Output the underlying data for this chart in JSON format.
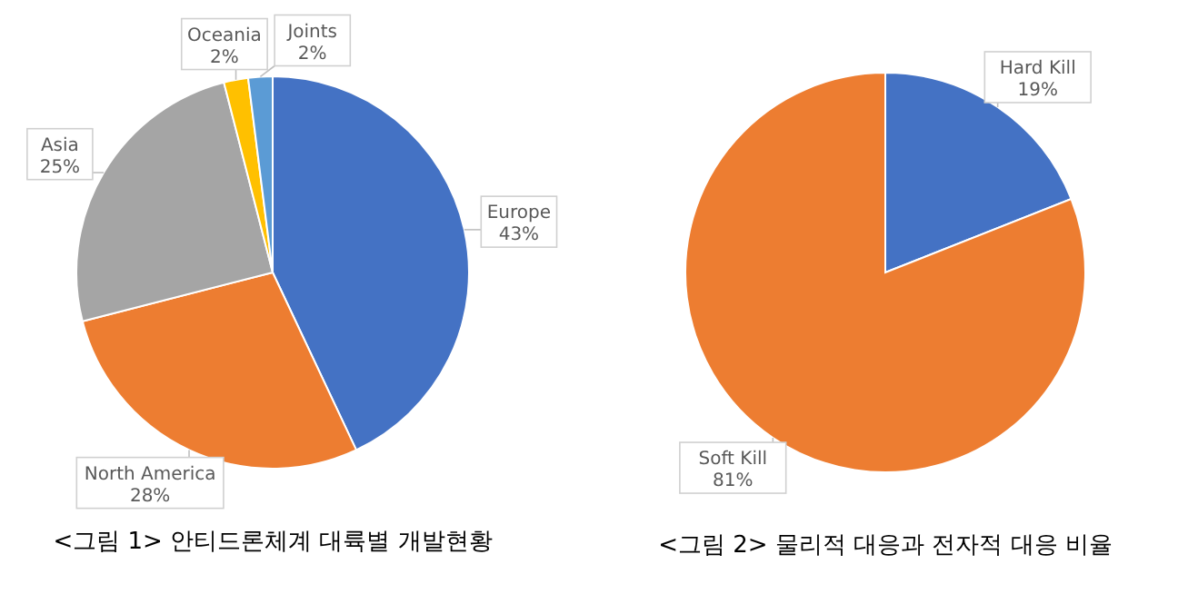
{
  "chart_data": [
    {
      "type": "pie",
      "title": "<그림 1> 안티드론체계 대륙별 개발현황",
      "categories": [
        "Europe",
        "North America",
        "Asia",
        "Oceania",
        "Joints"
      ],
      "values": [
        43,
        28,
        25,
        2,
        2
      ],
      "value_labels": [
        "43%",
        "28%",
        "25%",
        "2%",
        "2%"
      ],
      "colors": [
        "#4472c4",
        "#ed7d31",
        "#a5a5a5",
        "#ffc000",
        "#5b9bd5"
      ]
    },
    {
      "type": "pie",
      "title": "<그림 2> 물리적 대응과 전자적 대응 비율",
      "categories": [
        "Hard Kill",
        "Soft Kill"
      ],
      "values": [
        19,
        81
      ],
      "value_labels": [
        "19%",
        "81%"
      ],
      "colors": [
        "#4472c4",
        "#ed7d31"
      ]
    }
  ]
}
